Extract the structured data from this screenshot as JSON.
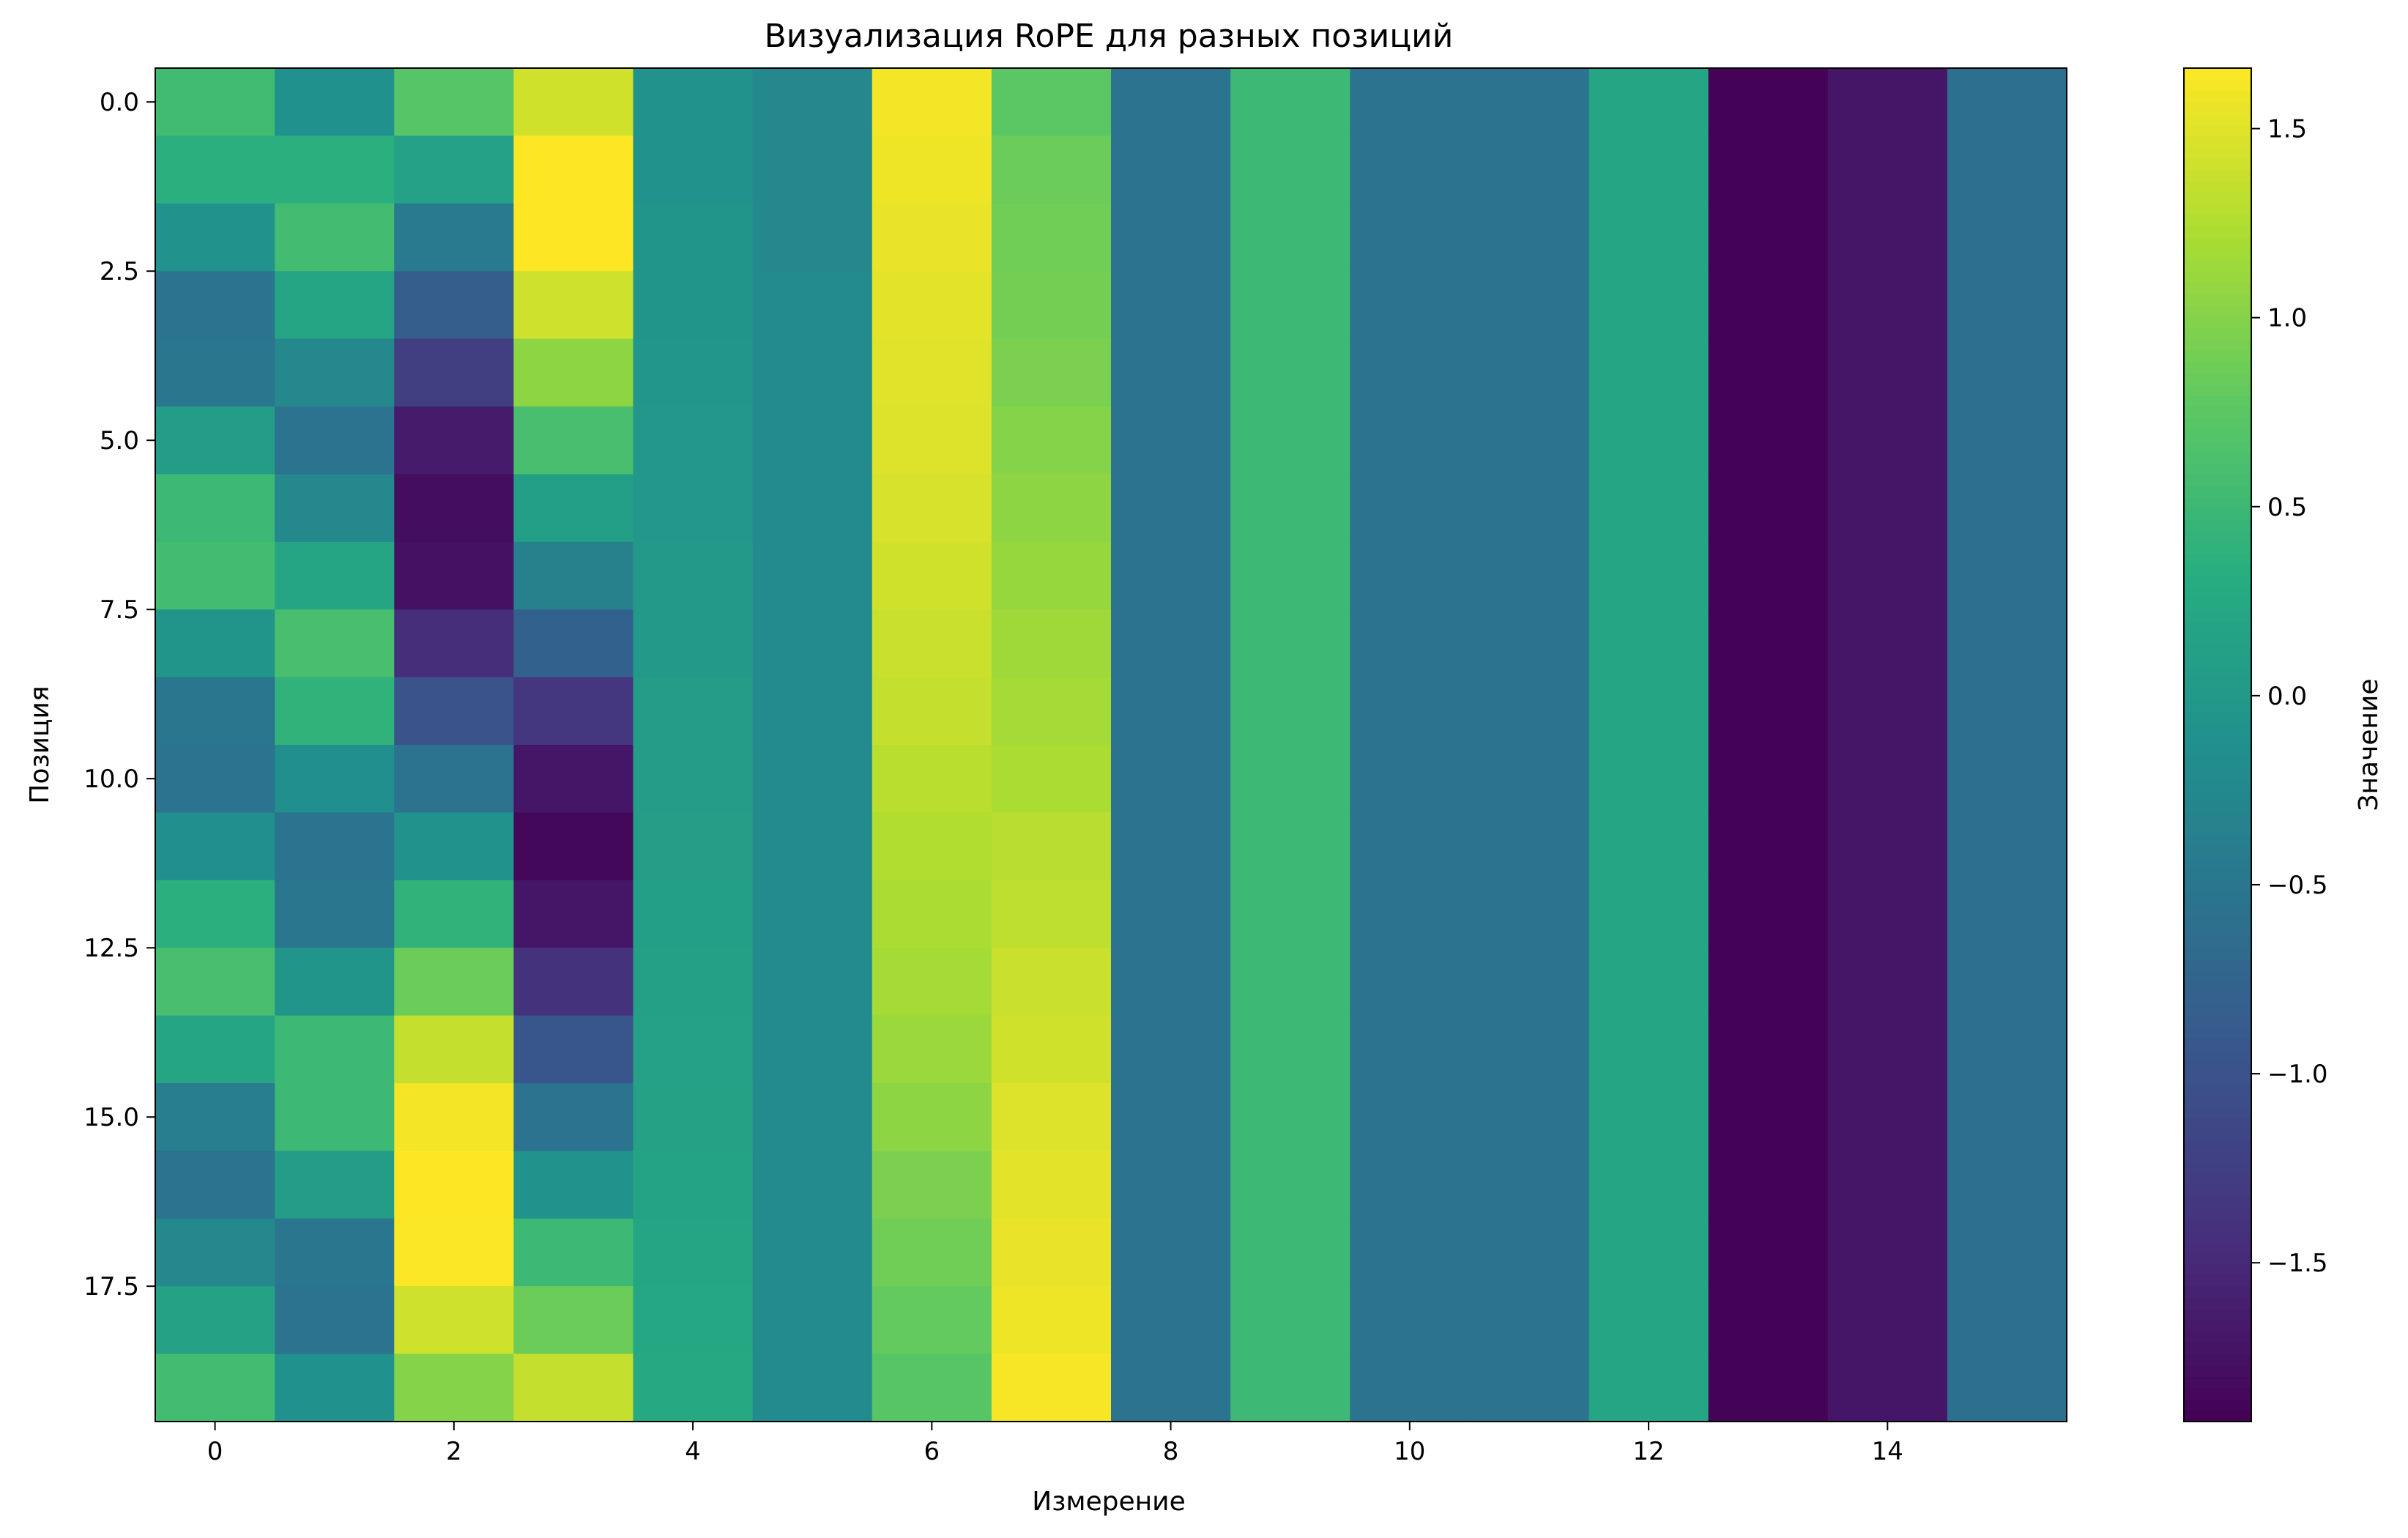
{
  "chart_data": {
    "type": "heatmap",
    "title": "Визуализация RoPE для разных позиций",
    "xlabel": "Измерение",
    "ylabel": "Позиция",
    "colorbar_label": "Значение",
    "colormap": "viridis",
    "color_range": [
      -1.92,
      1.66
    ],
    "n_rows": 20,
    "n_cols": 16,
    "x_ticks": [
      0,
      2,
      4,
      6,
      8,
      10,
      12,
      14
    ],
    "x_tick_labels": [
      "0",
      "2",
      "4",
      "6",
      "8",
      "10",
      "12",
      "14"
    ],
    "y_ticks": [
      0.0,
      2.5,
      5.0,
      7.5,
      10.0,
      12.5,
      15.0,
      17.5
    ],
    "y_tick_labels": [
      "0.0",
      "2.5",
      "5.0",
      "7.5",
      "10.0",
      "12.5",
      "15.0",
      "17.5"
    ],
    "colorbar_ticks": [
      -1.5,
      -1.0,
      -0.5,
      0.0,
      0.5,
      1.0,
      1.5
    ],
    "colorbar_tick_labels": [
      "−1.5",
      "−1.0",
      "−0.5",
      "0.0",
      "0.5",
      "1.0",
      "1.5"
    ],
    "values": [
      [
        0.54,
        -0.12,
        0.71,
        1.42,
        -0.08,
        -0.25,
        1.6,
        0.75,
        -0.55,
        0.5,
        -0.55,
        -0.55,
        0.2,
        -1.9,
        -1.7,
        -0.6
      ],
      [
        0.35,
        0.35,
        0.13,
        1.66,
        -0.08,
        -0.24,
        1.58,
        0.85,
        -0.55,
        0.5,
        -0.55,
        -0.55,
        0.2,
        -1.9,
        -1.7,
        -0.6
      ],
      [
        -0.1,
        0.55,
        -0.45,
        1.66,
        -0.05,
        -0.24,
        1.55,
        0.88,
        -0.55,
        0.5,
        -0.55,
        -0.55,
        0.2,
        -1.9,
        -1.7,
        -0.6
      ],
      [
        -0.55,
        0.2,
        -0.85,
        1.4,
        -0.05,
        -0.22,
        1.52,
        0.9,
        -0.55,
        0.5,
        -0.55,
        -0.55,
        0.2,
        -1.9,
        -1.7,
        -0.6
      ],
      [
        -0.5,
        -0.25,
        -1.25,
        1.05,
        -0.03,
        -0.22,
        1.5,
        0.95,
        -0.55,
        0.5,
        -0.55,
        -0.55,
        0.2,
        -1.9,
        -1.7,
        -0.6
      ],
      [
        0.05,
        -0.55,
        -1.65,
        0.6,
        -0.02,
        -0.22,
        1.48,
        1.0,
        -0.55,
        0.5,
        -0.55,
        -0.55,
        0.2,
        -1.9,
        -1.7,
        -0.6
      ],
      [
        0.5,
        -0.25,
        -1.8,
        0.1,
        0.0,
        -0.22,
        1.45,
        1.05,
        -0.55,
        0.5,
        -0.55,
        -0.55,
        0.2,
        -1.9,
        -1.7,
        -0.6
      ],
      [
        0.55,
        0.2,
        -1.75,
        -0.35,
        0.02,
        -0.22,
        1.42,
        1.1,
        -0.55,
        0.5,
        -0.55,
        -0.55,
        0.2,
        -1.9,
        -1.7,
        -0.6
      ],
      [
        -0.05,
        0.6,
        -1.45,
        -0.8,
        0.03,
        -0.22,
        1.38,
        1.15,
        -0.55,
        0.5,
        -0.55,
        -0.55,
        0.2,
        -1.9,
        -1.7,
        -0.6
      ],
      [
        -0.5,
        0.4,
        -1.0,
        -1.35,
        0.05,
        -0.22,
        1.35,
        1.18,
        -0.55,
        0.5,
        -0.55,
        -0.55,
        0.2,
        -1.9,
        -1.7,
        -0.6
      ],
      [
        -0.55,
        -0.15,
        -0.55,
        -1.7,
        0.07,
        -0.22,
        1.3,
        1.22,
        -0.55,
        0.5,
        -0.55,
        -0.55,
        0.2,
        -1.9,
        -1.7,
        -0.6
      ],
      [
        -0.15,
        -0.55,
        -0.1,
        -1.85,
        0.08,
        -0.22,
        1.25,
        1.28,
        -0.55,
        0.5,
        -0.55,
        -0.55,
        0.2,
        -1.9,
        -1.7,
        -0.6
      ],
      [
        0.35,
        -0.5,
        0.4,
        -1.7,
        0.1,
        -0.22,
        1.22,
        1.32,
        -0.55,
        0.5,
        -0.55,
        -0.55,
        0.2,
        -1.9,
        -1.7,
        -0.6
      ],
      [
        0.6,
        -0.05,
        0.85,
        -1.4,
        0.12,
        -0.22,
        1.18,
        1.38,
        -0.55,
        0.5,
        -0.55,
        -0.55,
        0.2,
        -1.9,
        -1.7,
        -0.6
      ],
      [
        0.2,
        0.5,
        1.35,
        -0.95,
        0.13,
        -0.22,
        1.12,
        1.42,
        -0.55,
        0.5,
        -0.55,
        -0.55,
        0.2,
        -1.9,
        -1.7,
        -0.6
      ],
      [
        -0.4,
        0.5,
        1.6,
        -0.55,
        0.15,
        -0.22,
        1.05,
        1.48,
        -0.55,
        0.5,
        -0.55,
        -0.55,
        0.2,
        -1.9,
        -1.7,
        -0.6
      ],
      [
        -0.55,
        0.05,
        1.66,
        -0.1,
        0.17,
        -0.22,
        0.95,
        1.52,
        -0.55,
        0.5,
        -0.55,
        -0.55,
        0.2,
        -1.9,
        -1.7,
        -0.6
      ],
      [
        -0.25,
        -0.5,
        1.65,
        0.5,
        0.2,
        -0.22,
        0.88,
        1.55,
        -0.55,
        0.5,
        -0.55,
        -0.55,
        0.2,
        -1.9,
        -1.7,
        -0.6
      ],
      [
        0.15,
        -0.55,
        1.4,
        0.85,
        0.22,
        -0.22,
        0.8,
        1.58,
        -0.55,
        0.5,
        -0.55,
        -0.55,
        0.2,
        -1.9,
        -1.7,
        -0.6
      ],
      [
        0.55,
        -0.12,
        1.0,
        1.35,
        0.25,
        -0.22,
        0.72,
        1.62,
        -0.55,
        0.5,
        -0.55,
        -0.55,
        0.2,
        -1.9,
        -1.7,
        -0.6
      ]
    ]
  }
}
